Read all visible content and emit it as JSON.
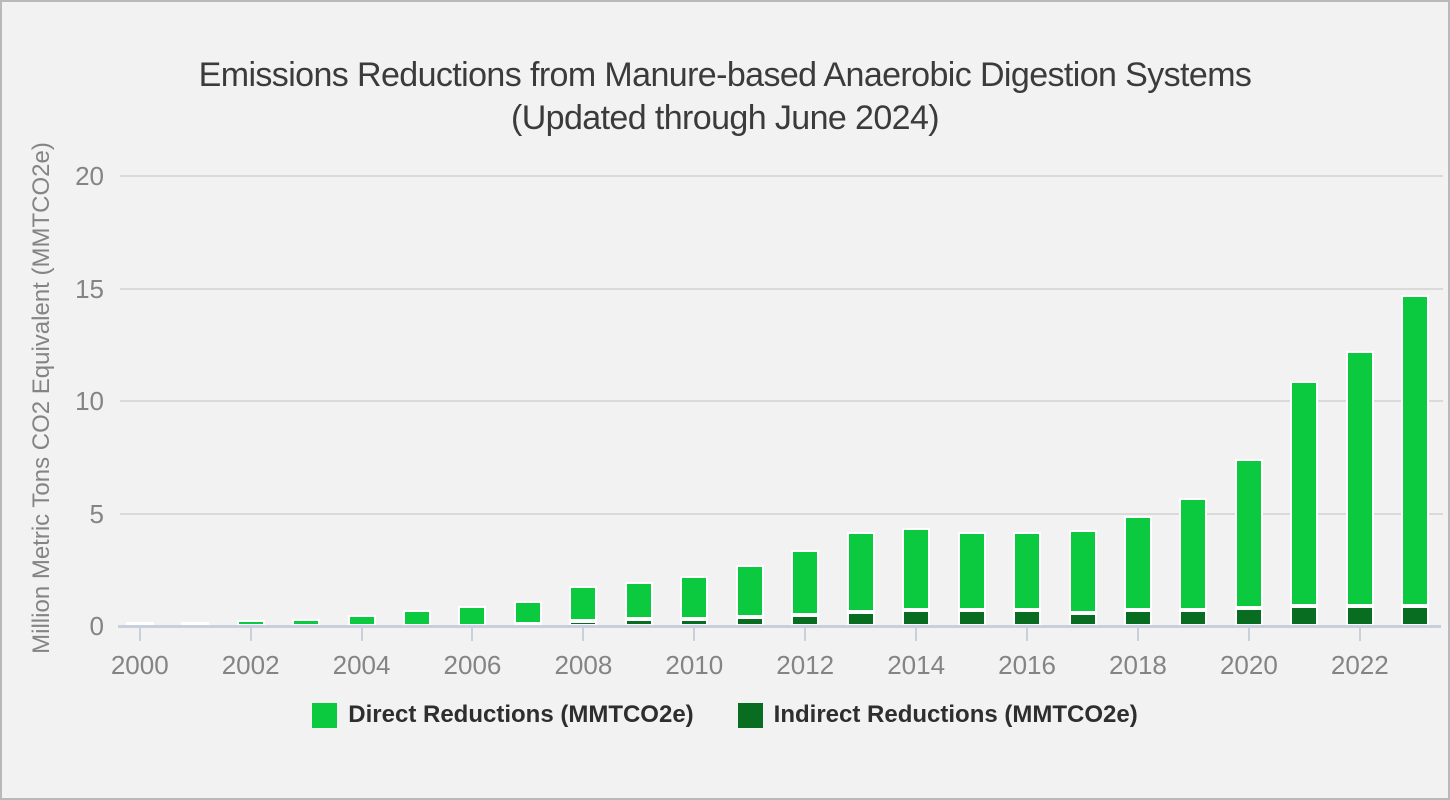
{
  "title": {
    "line1": "Emissions Reductions from Manure-based Anaerobic Digestion Systems",
    "line2": "(Updated through June 2024)"
  },
  "chart_data": {
    "type": "bar",
    "stacked": true,
    "title": "Emissions Reductions from Manure-based Anaerobic Digestion Systems (Updated through June 2024)",
    "xlabel": "",
    "ylabel": "Million Metric Tons CO2 Equivalent (MMTCO2e)",
    "ylim": [
      0,
      20
    ],
    "ytick_values": [
      0,
      5,
      10,
      15,
      20
    ],
    "ytick_labels": [
      "0",
      "5",
      "10",
      "15",
      "20"
    ],
    "grid": "horizontal",
    "legend_position": "bottom",
    "stack_order_bottom_to_top": [
      "Indirect Reductions (MMTCO2e)",
      "Direct Reductions (MMTCO2e)"
    ],
    "categories": [
      "2000",
      "2001",
      "2002",
      "2003",
      "2004",
      "2005",
      "2006",
      "2007",
      "2008",
      "2009",
      "2010",
      "2011",
      "2012",
      "2013",
      "2014",
      "2015",
      "2016",
      "2017",
      "2018",
      "2019",
      "2020",
      "2021",
      "2022",
      "2023"
    ],
    "xtick_labels": [
      "2000",
      "2002",
      "2004",
      "2006",
      "2008",
      "2010",
      "2012",
      "2014",
      "2016",
      "2018",
      "2020",
      "2022"
    ],
    "series": [
      {
        "name": "Direct Reductions (MMTCO2e)",
        "color": "#0bca3f",
        "values": [
          0.05,
          0.2,
          0.27,
          0.31,
          0.48,
          0.69,
          0.91,
          1.04,
          1.57,
          1.65,
          1.94,
          2.33,
          2.86,
          3.58,
          3.62,
          3.44,
          3.48,
          3.65,
          4.15,
          5.01,
          6.62,
          9.97,
          11.34,
          13.85
        ],
        "totals_with_indirect": [
          0.05,
          0.2,
          0.27,
          0.31,
          0.48,
          0.69,
          0.91,
          1.13,
          1.8,
          1.95,
          2.24,
          2.73,
          3.36,
          4.2,
          4.34,
          4.16,
          4.2,
          4.25,
          4.87,
          5.71,
          7.44,
          10.87,
          12.24,
          14.73
        ]
      },
      {
        "name": "Indirect Reductions (MMTCO2e)",
        "color": "#086c21",
        "values": [
          0,
          0,
          0,
          0,
          0,
          0,
          0,
          0.09,
          0.23,
          0.3,
          0.3,
          0.4,
          0.5,
          0.62,
          0.72,
          0.72,
          0.72,
          0.6,
          0.72,
          0.7,
          0.82,
          0.9,
          0.9,
          0.88
        ]
      }
    ]
  },
  "colors": {
    "background": "#f2f2f2",
    "frame_border": "#b9b9b9",
    "title_text": "#3b3b3b",
    "axis_text": "#848484",
    "gridline": "#dadada",
    "axis_line": "#c7d0db",
    "direct_green": "#0bca3f",
    "indirect_green": "#086c21"
  }
}
